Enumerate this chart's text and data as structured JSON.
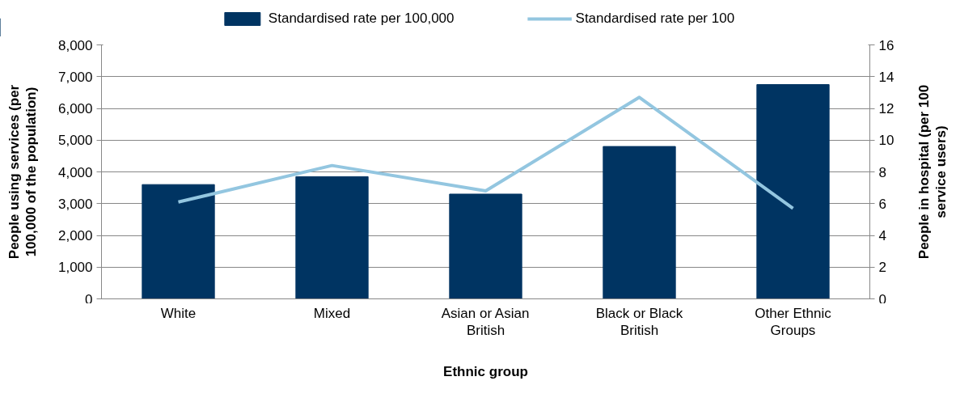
{
  "chart_data": {
    "type": "bar",
    "xlabel": "Ethnic group",
    "ylabel": "People using services (per\n100,000 of the population)",
    "y2label": "People in hospital (per 100\nservice users)",
    "categories": [
      "White",
      "Mixed",
      "Asian or Asian\nBritish",
      "Black or Black\nBritish",
      "Other Ethnic\nGroups"
    ],
    "series": [
      {
        "name": "Standardised rate per 100,000",
        "color": "#003462",
        "values": [
          3600,
          3850,
          3300,
          4800,
          6750
        ]
      },
      {
        "name": "Standardised rate per 100",
        "type": "line",
        "axis": "y2",
        "color": "#93c6e0",
        "values": [
          6.1,
          8.4,
          6.8,
          12.7,
          5.7
        ]
      }
    ],
    "ylim": [
      0,
      8000
    ],
    "yticks": [
      {
        "value": 0,
        "label": "0"
      },
      {
        "value": 1000,
        "label": "1,000"
      },
      {
        "value": 2000,
        "label": "2,000"
      },
      {
        "value": 3000,
        "label": "3,000"
      },
      {
        "value": 4000,
        "label": "4,000"
      },
      {
        "value": 5000,
        "label": "5,000"
      },
      {
        "value": 6000,
        "label": "6,000"
      },
      {
        "value": 7000,
        "label": "7,000"
      },
      {
        "value": 8000,
        "label": "8,000"
      }
    ],
    "y2lim": [
      0,
      16
    ],
    "y2ticks": [
      0,
      2,
      4,
      6,
      8,
      10,
      12,
      14,
      16
    ],
    "grid": "y",
    "legend": "top",
    "marker": "none"
  }
}
